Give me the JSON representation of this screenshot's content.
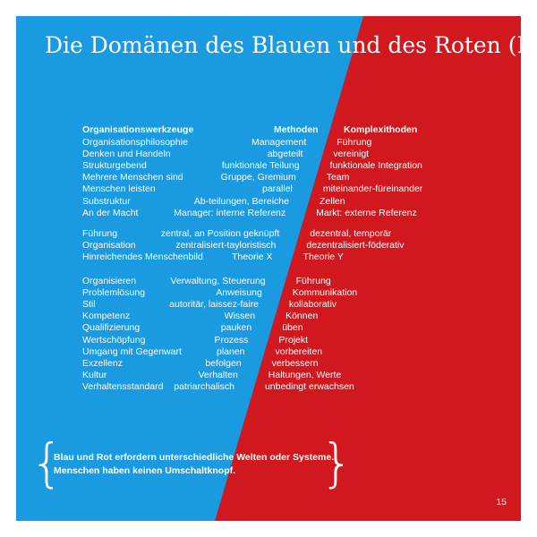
{
  "title": "Die Domänen des Blauen und des Roten (II)",
  "colors": {
    "blue": "#1a9ae0",
    "red": "#d1181f",
    "text": "#ffffff"
  },
  "header": {
    "col1": "Organisationswerkzeuge",
    "col2": "Methoden",
    "col3": "Komplexithoden"
  },
  "groups": [
    [
      {
        "label": "Organisationsphilosophie",
        "blue": "Management",
        "red": "Führung"
      },
      {
        "label": "Denken und Handeln",
        "blue": "abgeteilt",
        "red": "vereinigt"
      },
      {
        "label": "Strukturgebend",
        "blue": "funktionale Teilung",
        "red": "funktionale Integration"
      },
      {
        "label": "Mehrere Menschen sind",
        "blue": "Gruppe, Gremium",
        "red": "Team"
      },
      {
        "label": "Menschen leisten",
        "blue": "parallel",
        "red": "miteinander-füreinander"
      },
      {
        "label": "Substruktur",
        "blue": "Ab-teilungen, Bereiche",
        "red": "Zellen"
      },
      {
        "label": "An der Macht",
        "blue": "Manager: interne Referenz",
        "red": "Markt: externe Referenz"
      }
    ],
    [
      {
        "label": "Führung",
        "blue": "zentral, an Position geknüpft",
        "red": "dezentral, temporär"
      },
      {
        "label": "Organisation",
        "blue": "zentralisiert-tayloristisch",
        "red": "dezentralisiert-föderativ"
      },
      {
        "label": "Hinreichendes Menschenbild",
        "blue": "Theorie X",
        "red": "Theorie Y"
      }
    ],
    [
      {
        "label": "Organisieren",
        "blue": "Verwaltung, Steuerung",
        "red": "Führung"
      },
      {
        "label": "Problemlösung",
        "blue": "Anweisung",
        "red": "Kommunikation"
      },
      {
        "label": "Stil",
        "blue": "autoritär, laissez-faire",
        "red": "kollaborativ"
      },
      {
        "label": "Kompetenz",
        "blue": "Wissen",
        "red": "Können"
      },
      {
        "label": "Qualifizierung",
        "blue": "pauken",
        "red": "üben"
      },
      {
        "label": "Wertschöpfung",
        "blue": "Prozess",
        "red": "Projekt"
      },
      {
        "label": "Umgang mit Gegenwart",
        "blue": "planen",
        "red": "vorbereiten"
      },
      {
        "label": "Exzellenz",
        "blue": "befolgen",
        "red": "verbessern"
      },
      {
        "label": "Kultur",
        "blue": "Verhalten",
        "red": "Haltungen, Werte"
      },
      {
        "label": "Verhaltensstandard",
        "blue": "patriarchalisch",
        "red": "unbedingt erwachsen"
      }
    ]
  ],
  "quote": {
    "line1": "Blau und Rot erfordern unterschiedliche Welten oder Systeme.",
    "line2": "Menschen haben keinen Umschaltknopf."
  },
  "braces": {
    "open": "{",
    "close": "}"
  },
  "page_number": "15"
}
